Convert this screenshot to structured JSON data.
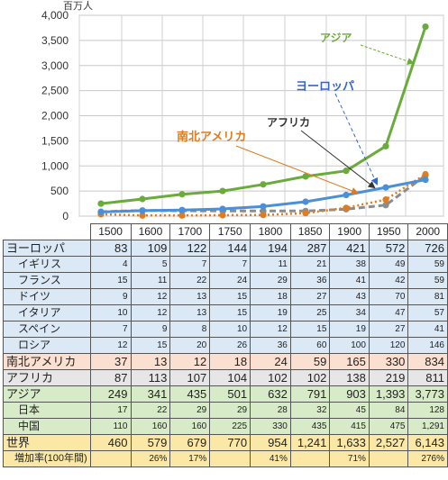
{
  "chart_data": {
    "type": "line",
    "unit_label": "百万人",
    "x": [
      1500,
      1600,
      1700,
      1750,
      1800,
      1850,
      1900,
      1950,
      2000
    ],
    "ylim": [
      0,
      4000
    ],
    "yticks": [
      "0",
      "500",
      "1,000",
      "1,500",
      "2,000",
      "2,500",
      "3,000",
      "3,500",
      "4,000"
    ],
    "grid": true,
    "series": [
      {
        "name": "アジア",
        "values": [
          249,
          341,
          435,
          501,
          632,
          791,
          903,
          1393,
          3773
        ],
        "color": "#6aab3c",
        "style": "solid"
      },
      {
        "name": "ヨーロッパ",
        "values": [
          83,
          109,
          122,
          144,
          194,
          287,
          421,
          572,
          726
        ],
        "color": "#4a8fd8",
        "style": "solid"
      },
      {
        "name": "アフリカ",
        "values": [
          87,
          113,
          107,
          104,
          102,
          102,
          138,
          219,
          811
        ],
        "color": "#8c8c8c",
        "style": "dashed"
      },
      {
        "name": "南北アメリカ",
        "values": [
          37,
          13,
          12,
          18,
          24,
          59,
          165,
          330,
          834
        ],
        "color": "#e07b20",
        "style": "dotted"
      }
    ],
    "annotations": [
      {
        "text": "アジア",
        "color": "#6aab3c"
      },
      {
        "text": "ヨーロッパ",
        "color": "#3366cc"
      },
      {
        "text": "アフリカ",
        "color": "#333333"
      },
      {
        "text": "南北アメリカ",
        "color": "#e07b20"
      }
    ]
  },
  "table": {
    "years": [
      "1500",
      "1600",
      "1700",
      "1750",
      "1800",
      "1850",
      "1900",
      "1950",
      "2000"
    ],
    "rows": [
      {
        "label": "ヨーロッパ",
        "sub": false,
        "bg": "#dbe8f6",
        "values": [
          "83",
          "109",
          "122",
          "144",
          "194",
          "287",
          "421",
          "572",
          "726"
        ]
      },
      {
        "label": "イギリス",
        "sub": true,
        "bg": "#dbe8f6",
        "values": [
          "4",
          "5",
          "7",
          "7",
          "11",
          "21",
          "38",
          "49",
          "59"
        ]
      },
      {
        "label": "フランス",
        "sub": true,
        "bg": "#dbe8f6",
        "values": [
          "15",
          "11",
          "22",
          "24",
          "29",
          "36",
          "41",
          "42",
          "59"
        ]
      },
      {
        "label": "ドイツ",
        "sub": true,
        "bg": "#dbe8f6",
        "values": [
          "9",
          "12",
          "13",
          "15",
          "18",
          "27",
          "43",
          "70",
          "81"
        ]
      },
      {
        "label": "イタリア",
        "sub": true,
        "bg": "#dbe8f6",
        "values": [
          "10",
          "12",
          "13",
          "15",
          "19",
          "25",
          "34",
          "47",
          "57"
        ]
      },
      {
        "label": "スペイン",
        "sub": true,
        "bg": "#dbe8f6",
        "values": [
          "7",
          "9",
          "8",
          "10",
          "12",
          "15",
          "19",
          "27",
          "41"
        ]
      },
      {
        "label": "ロシア",
        "sub": true,
        "bg": "#dbe8f6",
        "values": [
          "12",
          "15",
          "20",
          "26",
          "36",
          "60",
          "100",
          "120",
          "146"
        ]
      },
      {
        "label": "南北アメリカ",
        "sub": false,
        "bg": "#fbe0d2",
        "values": [
          "37",
          "13",
          "12",
          "18",
          "24",
          "59",
          "165",
          "330",
          "834"
        ]
      },
      {
        "label": "アフリカ",
        "sub": false,
        "bg": "#e6e6e6",
        "values": [
          "87",
          "113",
          "107",
          "104",
          "102",
          "102",
          "138",
          "219",
          "811"
        ]
      },
      {
        "label": "アジア",
        "sub": false,
        "bg": "#d8ebc8",
        "values": [
          "249",
          "341",
          "435",
          "501",
          "632",
          "791",
          "903",
          "1,393",
          "3,773"
        ]
      },
      {
        "label": "日本",
        "sub": true,
        "bg": "#d8ebc8",
        "values": [
          "17",
          "22",
          "29",
          "29",
          "28",
          "32",
          "45",
          "84",
          "128"
        ]
      },
      {
        "label": "中国",
        "sub": true,
        "bg": "#d8ebc8",
        "values": [
          "110",
          "160",
          "160",
          "225",
          "330",
          "435",
          "415",
          "475",
          "1,291"
        ]
      },
      {
        "label": "世界",
        "sub": false,
        "bg": "#fbe8a6",
        "values": [
          "460",
          "579",
          "679",
          "770",
          "954",
          "1,241",
          "1,633",
          "2,527",
          "6,143"
        ]
      },
      {
        "label": "増加率(100年間)",
        "sub": true,
        "bg": "#fbe8a6",
        "rate": true,
        "values": [
          "",
          "26%",
          "17%",
          "",
          "41%",
          "",
          "71%",
          "",
          "276%"
        ]
      }
    ]
  }
}
